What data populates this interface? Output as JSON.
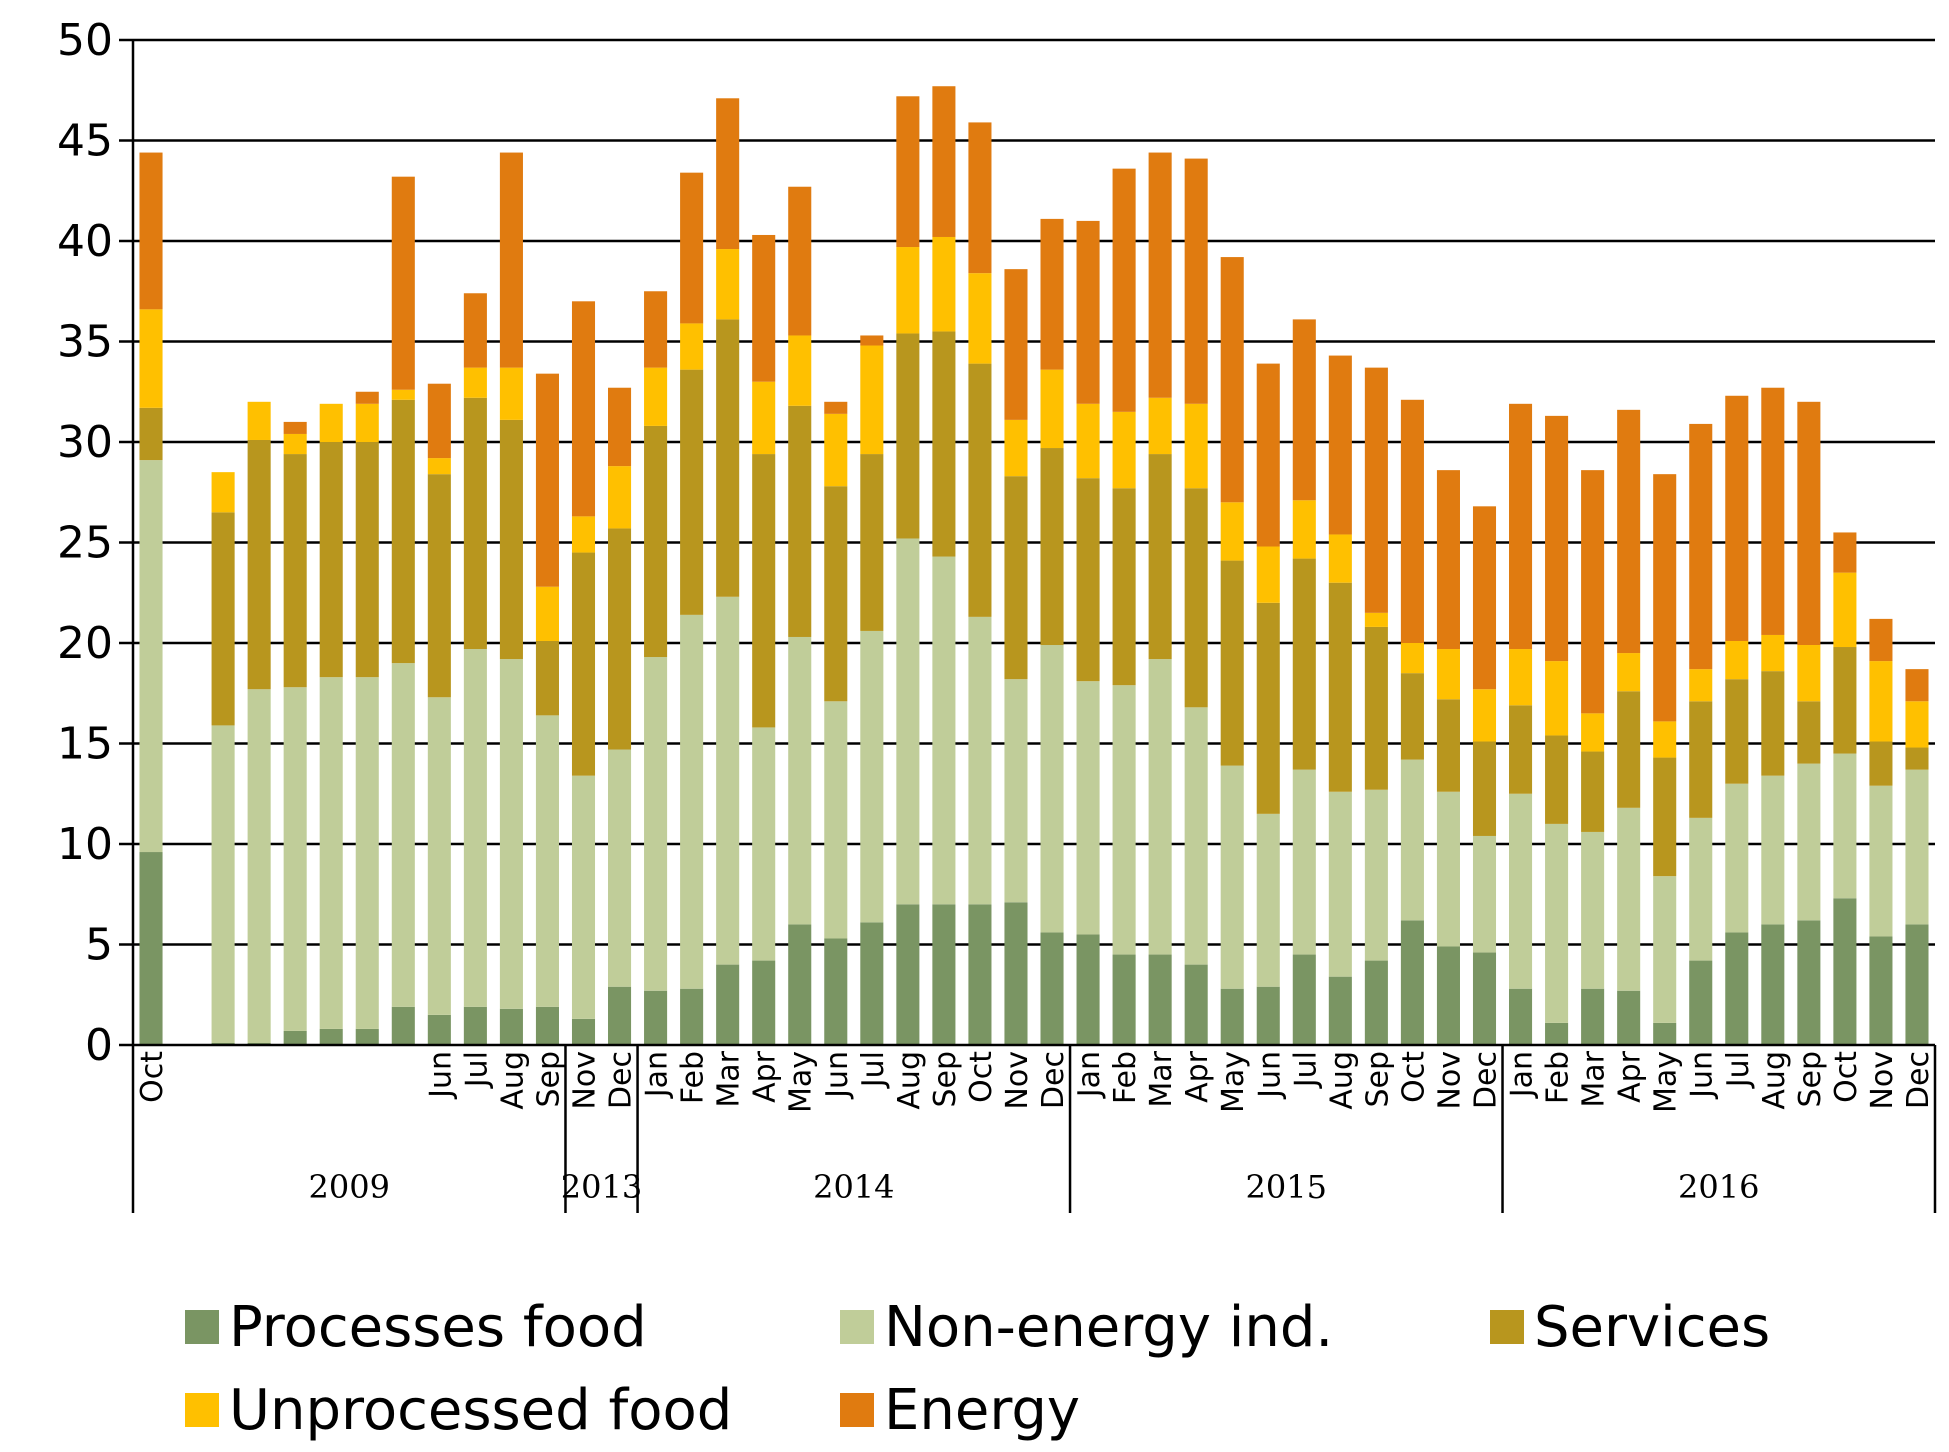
{
  "chart_data": {
    "type": "bar",
    "stacked": true,
    "title": "",
    "xlabel": "",
    "ylabel": "",
    "ylim": [
      0,
      50
    ],
    "yticks": [
      0,
      5,
      10,
      15,
      20,
      25,
      30,
      35,
      40,
      45,
      50
    ],
    "grid": true,
    "legend_position": "bottom",
    "categories": [
      "Oct",
      "",
      "",
      "",
      "",
      "",
      "",
      "",
      "Jun",
      "Jul",
      "Aug",
      "Sep",
      "Nov",
      "Dec",
      "Jan",
      "Feb",
      "Mar",
      "Apr",
      "May",
      "Jun",
      "Jul",
      "Aug",
      "Sep",
      "Oct",
      "Nov",
      "Dec",
      "Jan",
      "Feb",
      "Mar",
      "Apr",
      "May",
      "Jun",
      "Jul",
      "Aug",
      "Sep",
      "Oct",
      "Nov",
      "Dec",
      "Jan",
      "Feb",
      "Mar",
      "Apr",
      "May",
      "Jun",
      "Jul",
      "Aug",
      "Sep",
      "Oct",
      "Nov",
      "Dec"
    ],
    "groups": [
      {
        "label": "2009",
        "start": 0,
        "end": 11
      },
      {
        "label": "2013",
        "start": 12,
        "end": 13
      },
      {
        "label": "2014",
        "start": 14,
        "end": 25
      },
      {
        "label": "2015",
        "start": 26,
        "end": 37
      },
      {
        "label": "2016",
        "start": 38,
        "end": 49
      }
    ],
    "series": [
      {
        "name": "Processes food",
        "color": "#7a9563",
        "values": [
          9.6,
          0,
          0.1,
          0.1,
          0.7,
          0.8,
          0.8,
          1.9,
          1.5,
          1.9,
          1.8,
          1.9,
          1.3,
          2.9,
          2.7,
          2.8,
          4.0,
          4.2,
          6.0,
          5.3,
          6.1,
          7.0,
          7.0,
          7.0,
          7.1,
          5.6,
          5.5,
          4.5,
          4.5,
          4.0,
          2.8,
          2.9,
          4.5,
          3.4,
          4.2,
          6.2,
          4.9,
          4.6,
          2.8,
          1.1,
          2.8,
          2.7,
          1.1,
          4.2,
          5.6,
          6.0,
          6.2,
          7.3,
          5.4,
          6.0
        ]
      },
      {
        "name": "Non-energy ind.",
        "color": "#c0cd99",
        "values": [
          19.5,
          0,
          15.8,
          17.6,
          17.1,
          17.5,
          17.5,
          17.1,
          15.8,
          17.8,
          17.4,
          14.5,
          12.1,
          11.8,
          16.6,
          18.6,
          18.3,
          11.6,
          14.3,
          11.8,
          14.5,
          18.2,
          17.3,
          14.3,
          11.1,
          14.3,
          12.6,
          13.4,
          14.7,
          12.8,
          11.1,
          8.6,
          9.2,
          9.2,
          8.5,
          8.0,
          7.7,
          5.8,
          9.7,
          9.9,
          7.8,
          9.1,
          7.3,
          7.1,
          7.4,
          7.4,
          7.8,
          7.2,
          7.5,
          7.7
        ]
      },
      {
        "name": "Services",
        "color": "#b8961e",
        "values": [
          2.6,
          0,
          10.6,
          12.4,
          11.6,
          11.7,
          11.7,
          13.1,
          11.1,
          12.5,
          11.9,
          3.7,
          11.1,
          11.0,
          11.5,
          12.2,
          13.8,
          13.6,
          11.5,
          10.7,
          8.8,
          10.2,
          11.2,
          12.6,
          10.1,
          9.8,
          10.1,
          9.8,
          10.2,
          10.9,
          10.2,
          10.5,
          10.5,
          10.4,
          8.1,
          4.3,
          4.6,
          4.7,
          4.4,
          4.4,
          4.0,
          5.8,
          5.9,
          5.8,
          5.2,
          5.2,
          3.1,
          5.3,
          2.2,
          1.1
        ]
      },
      {
        "name": "Unprocessed food",
        "color": "#ffc000",
        "values": [
          4.9,
          0,
          2.0,
          1.9,
          1.0,
          1.9,
          1.9,
          0.5,
          0.8,
          1.5,
          2.6,
          2.7,
          1.8,
          3.1,
          2.9,
          2.3,
          3.5,
          3.6,
          3.5,
          3.6,
          5.4,
          4.3,
          4.7,
          4.5,
          2.8,
          3.9,
          3.7,
          3.8,
          2.8,
          4.2,
          2.9,
          2.8,
          2.9,
          2.4,
          0.7,
          1.5,
          2.5,
          2.6,
          2.8,
          3.7,
          1.9,
          1.9,
          1.8,
          1.6,
          1.9,
          1.8,
          2.8,
          3.7,
          4.0,
          2.3
        ]
      },
      {
        "name": "Energy",
        "color": "#e07b10",
        "values": [
          7.8,
          0,
          0,
          0,
          0.6,
          0,
          0.6,
          10.6,
          3.7,
          3.7,
          10.7,
          10.6,
          10.7,
          3.9,
          3.8,
          7.5,
          7.5,
          7.3,
          7.4,
          0.6,
          0.5,
          7.5,
          7.5,
          7.5,
          7.5,
          7.5,
          9.1,
          12.1,
          12.2,
          12.2,
          12.2,
          9.1,
          9.0,
          8.9,
          12.2,
          12.1,
          8.9,
          9.1,
          12.2,
          12.2,
          12.1,
          12.1,
          12.3,
          12.2,
          12.2,
          12.3,
          12.1,
          2.0,
          2.1,
          1.6
        ]
      }
    ]
  }
}
